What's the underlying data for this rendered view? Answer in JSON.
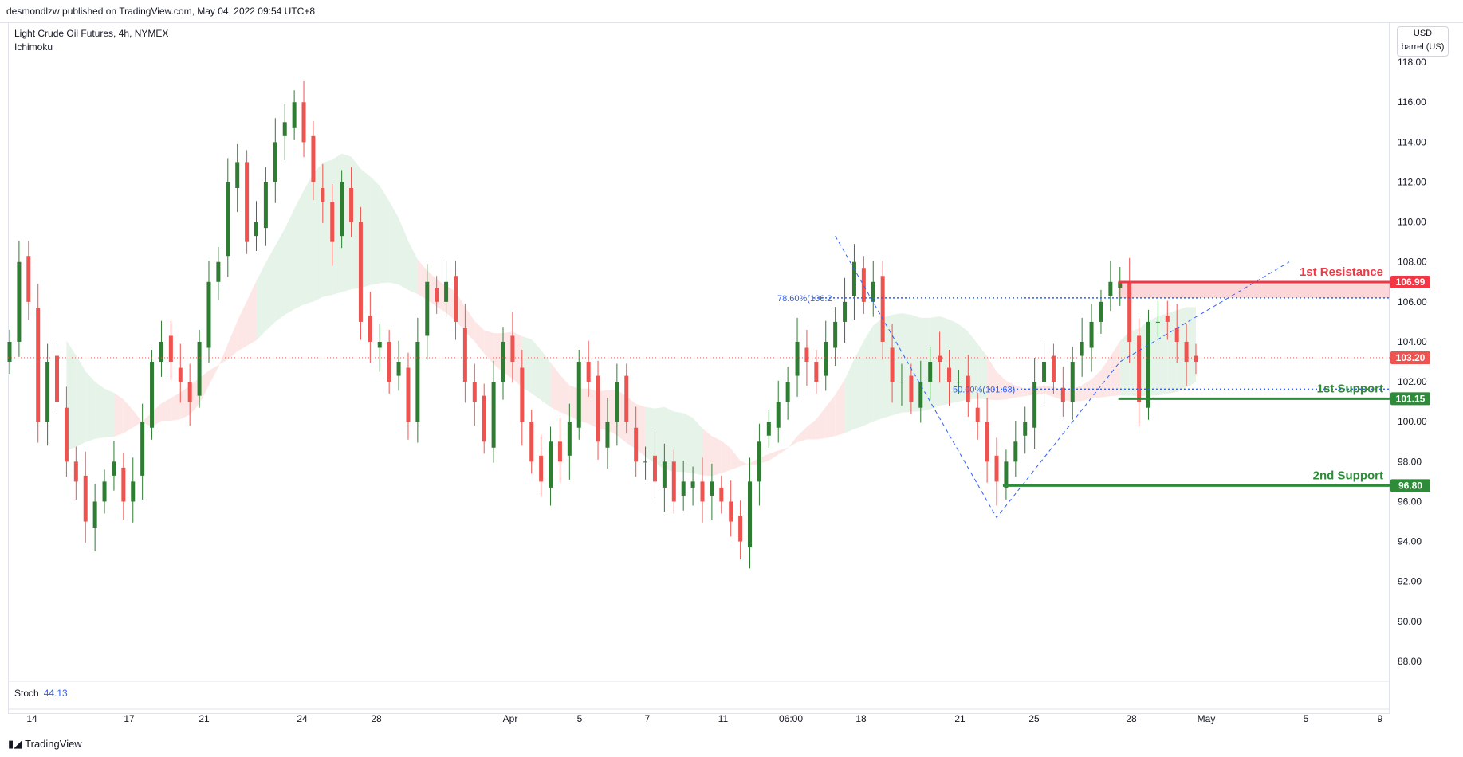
{
  "header": {
    "published_by": "desmondlzw published on TradingView.com, May 04, 2022 09:54 UTC+8"
  },
  "legend": {
    "symbol": "Light Crude Oil Futures, 4h, NYMEX",
    "indicator": "Ichimoku"
  },
  "price_axis": {
    "currency": "USD",
    "unit": "barrel (US)"
  },
  "stochastic": {
    "label": "Stoch",
    "value": "44.13"
  },
  "footer": {
    "brand": "TradingView"
  },
  "colors": {
    "up": "#26a69a",
    "up_fill": "#2e7d32",
    "down": "#ef5350",
    "resistance": "#f23645",
    "support": "#2e8b3a",
    "fib": "#2962ff",
    "cloud_green": "#e3f2e6",
    "cloud_red": "#fde4e3"
  },
  "chart_data": {
    "type": "candlestick",
    "title": "Light Crude Oil Futures, 4h, NYMEX",
    "ylim": [
      87,
      120
    ],
    "y_ticks": [
      "118.00",
      "116.00",
      "114.00",
      "112.00",
      "110.00",
      "108.00",
      "106.00",
      "104.00",
      "102.00",
      "100.00",
      "98.00",
      "96.00",
      "94.00",
      "92.00",
      "90.00",
      "88.00"
    ],
    "x_ticks": [
      "14",
      "17",
      "21",
      "24",
      "28",
      "Apr",
      "5",
      "7",
      "11",
      "06:00",
      "18",
      "21",
      "25",
      "28",
      "May",
      "5",
      "9"
    ],
    "close_path": [
      104,
      108,
      106,
      100,
      103,
      101,
      98,
      97,
      95,
      96,
      97,
      98,
      96,
      97,
      100,
      103,
      104,
      103,
      102,
      101,
      104,
      107,
      108,
      112,
      113,
      109,
      110,
      112,
      114,
      115,
      116,
      114,
      112,
      111,
      109,
      112,
      110,
      105,
      104,
      104,
      102,
      103,
      100,
      104,
      107,
      106,
      107,
      105,
      102,
      101,
      99,
      102,
      104,
      103,
      100,
      98,
      97,
      99,
      98,
      100,
      103,
      102,
      99,
      100,
      102,
      100,
      98,
      98,
      97,
      98,
      96,
      97,
      97,
      96,
      97,
      96,
      95,
      94,
      97,
      99,
      100,
      101,
      102,
      104,
      103,
      102,
      104,
      105,
      106,
      108,
      106,
      107,
      104,
      102,
      102,
      101,
      102,
      103,
      103,
      102,
      102,
      101,
      100,
      98,
      97,
      98,
      99,
      100,
      102,
      103,
      102,
      101,
      103,
      104,
      105,
      106,
      107,
      107,
      104,
      101,
      105,
      105,
      105,
      104,
      103,
      103
    ],
    "current_price": "103.20",
    "annotations": [
      {
        "label": "1st Resistance",
        "price": "106.99"
      },
      {
        "label": "1st Support",
        "price": "101.15"
      },
      {
        "label": "2nd Support",
        "price": "96.80"
      }
    ],
    "fib_levels": [
      {
        "label": "78.60%(106.2",
        "price": 106.2
      },
      {
        "label": "50.00%(101.63)",
        "price": 101.63
      }
    ]
  }
}
